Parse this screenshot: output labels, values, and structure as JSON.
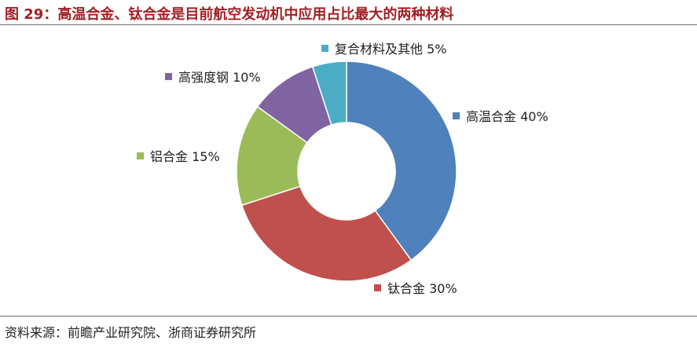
{
  "header": {
    "title": "图 29：高温合金、钛合金是目前航空发动机中应用占比最大的两种材料"
  },
  "footer": {
    "source": "资料来源：前瞻产业研究院、浙商证券研究所"
  },
  "chart_data": {
    "type": "pie",
    "donut": true,
    "title": "",
    "slices": [
      {
        "name": "高温合金",
        "value": 40,
        "label": "高温合金 40%",
        "color": "#4f81bd"
      },
      {
        "name": "钛合金",
        "value": 30,
        "label": "钛合金 30%",
        "color": "#c0504d"
      },
      {
        "name": "铝合金",
        "value": 15,
        "label": "铝合金 15%",
        "color": "#9bbb59"
      },
      {
        "name": "高强度钢",
        "value": 10,
        "label": "高强度钢 10%",
        "color": "#8064a2"
      },
      {
        "name": "复合材料及其他",
        "value": 5,
        "label": "复合材料及其他 5%",
        "color": "#4bacc6"
      }
    ],
    "legend": "none"
  }
}
